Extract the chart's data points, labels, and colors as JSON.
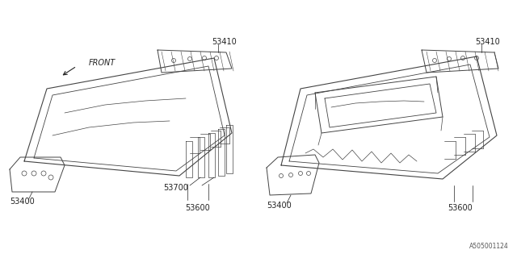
{
  "bg_color": "#ffffff",
  "line_color": "#444444",
  "text_color": "#222222",
  "fig_width": 6.4,
  "fig_height": 3.2,
  "dpi": 100,
  "catalog_text": "A505001124"
}
